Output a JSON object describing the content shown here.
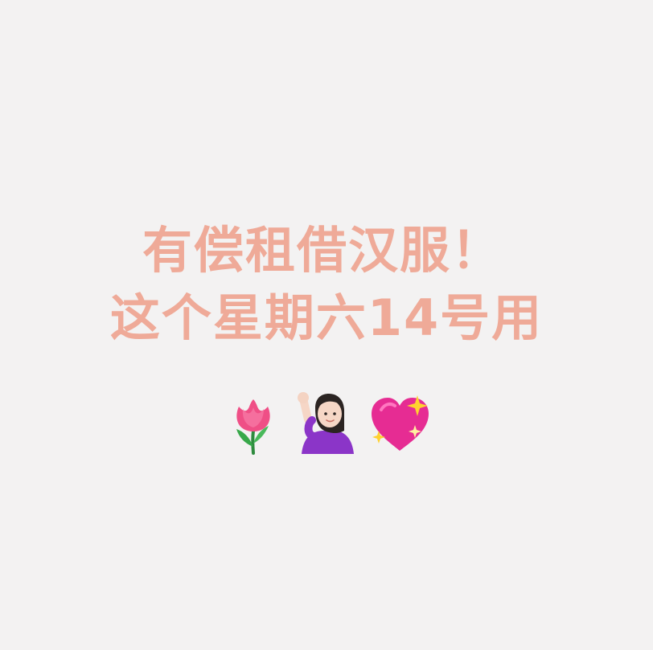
{
  "background_color": "#f3f2f2",
  "accent_color": "#efaa98",
  "headline": {
    "line_1": "有偿租借汉服！",
    "line_2": "这个星期六14号用"
  },
  "emojis": [
    {
      "icon": "tulip-icon"
    },
    {
      "icon": "person-raising-hand-icon"
    },
    {
      "icon": "sparkling-heart-icon"
    }
  ]
}
